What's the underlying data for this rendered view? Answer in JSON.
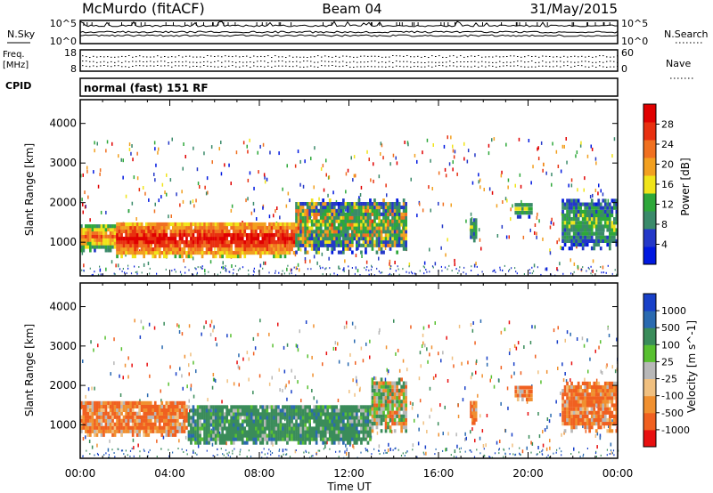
{
  "header": {
    "station": "McMurdo (fitACF)",
    "beam": "Beam 04",
    "date": "31/May/2015"
  },
  "left_labels": {
    "nsky": "N.Sky",
    "freq_line1": "Freq.",
    "freq_line2": "[MHz]",
    "cpid": "CPID"
  },
  "right_labels": {
    "nsearch": "N.Search",
    "nave": "Nave"
  },
  "noise_axis": {
    "top": "10^5",
    "bottom": "10^0"
  },
  "freq_axis": {
    "top": "18",
    "bottom": "8"
  },
  "nave_axis": {
    "top": "60",
    "bottom": "0"
  },
  "cpid_text": "normal (fast) 151 RF",
  "xaxis": {
    "label": "Time UT",
    "ticks": [
      "00:00",
      "04:00",
      "08:00",
      "12:00",
      "16:00",
      "20:00",
      "00:00"
    ]
  },
  "chart_data": [
    {
      "type": "heatmap",
      "name": "power",
      "xlabel": "Time UT",
      "ylabel": "Slant Range [km]",
      "xlim": [
        0,
        24
      ],
      "ylim": [
        150,
        4600
      ],
      "yticks": [
        1000,
        2000,
        3000,
        4000
      ],
      "colorbar": {
        "label": "Power [dB]",
        "ticks": [
          "4",
          "8",
          "12",
          "16",
          "20",
          "24",
          "28"
        ],
        "colors": [
          "#0018e0",
          "#2438c8",
          "#3a8a6a",
          "#2ea83a",
          "#f0e41a",
          "#f2a020",
          "#f07020",
          "#e83010",
          "#e00000"
        ]
      },
      "regions": [
        {
          "t0": 0.0,
          "t1": 1.6,
          "r0": 750,
          "r1": 1450,
          "level": "mid-high"
        },
        {
          "t0": 1.6,
          "t1": 9.6,
          "r0": 600,
          "r1": 1500,
          "level": "high"
        },
        {
          "t0": 9.6,
          "t1": 14.6,
          "r0": 700,
          "r1": 2100,
          "level": "mixed"
        },
        {
          "t0": 17.4,
          "t1": 17.7,
          "r0": 1000,
          "r1": 1600,
          "level": "mid"
        },
        {
          "t0": 19.4,
          "t1": 20.2,
          "r0": 1600,
          "r1": 2000,
          "level": "mid"
        },
        {
          "t0": 21.5,
          "t1": 24.0,
          "r0": 800,
          "r1": 2100,
          "level": "mid"
        }
      ]
    },
    {
      "type": "heatmap",
      "name": "velocity",
      "xlabel": "Time UT",
      "ylabel": "Slant Range [km]",
      "xlim": [
        0,
        24
      ],
      "ylim": [
        150,
        4600
      ],
      "yticks": [
        1000,
        2000,
        3000,
        4000
      ],
      "colorbar": {
        "label": "Velocity [m s^-1]",
        "ticks": [
          "1000",
          "500",
          "100",
          "25",
          "-25",
          "-100",
          "-500",
          "-1000"
        ],
        "colors": [
          "#1840c8",
          "#2a6ab0",
          "#3a8c5a",
          "#58c030",
          "#b8b8b8",
          "#f0c080",
          "#f09030",
          "#f06020",
          "#e81010"
        ]
      },
      "regions": [
        {
          "t0": 0.0,
          "t1": 4.8,
          "r0": 700,
          "r1": 1600,
          "level": "negative"
        },
        {
          "t0": 4.8,
          "t1": 13.0,
          "r0": 500,
          "r1": 1500,
          "level": "positive"
        },
        {
          "t0": 13.0,
          "t1": 14.6,
          "r0": 800,
          "r1": 2200,
          "level": "mixed"
        },
        {
          "t0": 17.4,
          "t1": 17.7,
          "r0": 1000,
          "r1": 1600,
          "level": "negative"
        },
        {
          "t0": 19.4,
          "t1": 20.2,
          "r0": 1600,
          "r1": 2000,
          "level": "negative"
        },
        {
          "t0": 21.5,
          "t1": 24.0,
          "r0": 800,
          "r1": 2100,
          "level": "negative"
        }
      ]
    }
  ]
}
